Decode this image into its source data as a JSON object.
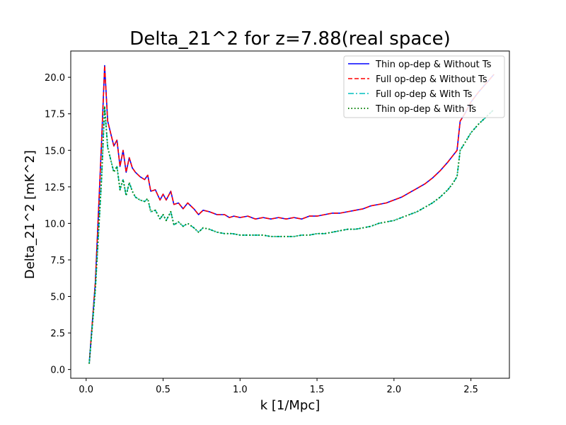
{
  "chart_data": {
    "type": "line",
    "title": "Delta_21^2 for z=7.88(real space)",
    "xlabel": "k [1/Mpc]",
    "ylabel": "Delta_21^2 [mK^2]",
    "xlim": [
      -0.1,
      2.75
    ],
    "ylim": [
      -0.6,
      21.8
    ],
    "xticks": [
      0.0,
      0.5,
      1.0,
      1.5,
      2.0,
      2.5
    ],
    "xtick_labels": [
      "0.0",
      "0.5",
      "1.0",
      "1.5",
      "2.0",
      "2.5"
    ],
    "yticks": [
      0.0,
      2.5,
      5.0,
      7.5,
      10.0,
      12.5,
      15.0,
      17.5,
      20.0
    ],
    "ytick_labels": [
      "0.0",
      "2.5",
      "5.0",
      "7.5",
      "10.0",
      "12.5",
      "15.0",
      "17.5",
      "20.0"
    ],
    "grid": false,
    "legend_position": "top-right",
    "series": [
      {
        "name": "Thin op-dep & Without Ts",
        "color": "#0000ff",
        "linestyle": "solid",
        "x": [
          0.02,
          0.06,
          0.1,
          0.12,
          0.14,
          0.18,
          0.2,
          0.22,
          0.24,
          0.26,
          0.28,
          0.3,
          0.32,
          0.35,
          0.38,
          0.4,
          0.42,
          0.45,
          0.48,
          0.5,
          0.52,
          0.55,
          0.57,
          0.6,
          0.63,
          0.66,
          0.7,
          0.73,
          0.76,
          0.8,
          0.85,
          0.9,
          0.93,
          0.96,
          1.0,
          1.05,
          1.1,
          1.15,
          1.2,
          1.25,
          1.3,
          1.35,
          1.4,
          1.45,
          1.5,
          1.55,
          1.6,
          1.65,
          1.7,
          1.75,
          1.8,
          1.85,
          1.9,
          1.95,
          2.0,
          2.05,
          2.1,
          2.15,
          2.2,
          2.25,
          2.3,
          2.35,
          2.38,
          2.41,
          2.43,
          2.46,
          2.5,
          2.55,
          2.6,
          2.65
        ],
        "values": [
          0.4,
          6.0,
          15.5,
          20.8,
          17.0,
          15.3,
          15.7,
          13.9,
          15.0,
          13.5,
          14.5,
          13.8,
          13.5,
          13.2,
          13.0,
          13.3,
          12.2,
          12.3,
          11.6,
          12.0,
          11.6,
          12.2,
          11.3,
          11.4,
          11.0,
          11.4,
          11.0,
          10.6,
          10.9,
          10.8,
          10.6,
          10.6,
          10.4,
          10.5,
          10.4,
          10.5,
          10.3,
          10.4,
          10.3,
          10.4,
          10.3,
          10.4,
          10.3,
          10.5,
          10.5,
          10.6,
          10.7,
          10.7,
          10.8,
          10.9,
          11.0,
          11.2,
          11.3,
          11.4,
          11.6,
          11.8,
          12.1,
          12.4,
          12.7,
          13.1,
          13.6,
          14.2,
          14.6,
          15.0,
          17.0,
          17.5,
          18.3,
          19.0,
          19.6,
          20.2
        ]
      },
      {
        "name": "Full op-dep & Without Ts",
        "color": "#ff0000",
        "linestyle": "dashed",
        "x": [
          0.02,
          0.06,
          0.1,
          0.12,
          0.14,
          0.18,
          0.2,
          0.22,
          0.24,
          0.26,
          0.28,
          0.3,
          0.32,
          0.35,
          0.38,
          0.4,
          0.42,
          0.45,
          0.48,
          0.5,
          0.52,
          0.55,
          0.57,
          0.6,
          0.63,
          0.66,
          0.7,
          0.73,
          0.76,
          0.8,
          0.85,
          0.9,
          0.93,
          0.96,
          1.0,
          1.05,
          1.1,
          1.15,
          1.2,
          1.25,
          1.3,
          1.35,
          1.4,
          1.45,
          1.5,
          1.55,
          1.6,
          1.65,
          1.7,
          1.75,
          1.8,
          1.85,
          1.9,
          1.95,
          2.0,
          2.05,
          2.1,
          2.15,
          2.2,
          2.25,
          2.3,
          2.35,
          2.38,
          2.41,
          2.43,
          2.46,
          2.5,
          2.55,
          2.6,
          2.65
        ],
        "values": [
          0.4,
          6.0,
          15.5,
          20.8,
          17.0,
          15.3,
          15.7,
          13.9,
          15.0,
          13.5,
          14.5,
          13.8,
          13.5,
          13.2,
          13.0,
          13.3,
          12.2,
          12.3,
          11.6,
          12.0,
          11.6,
          12.2,
          11.3,
          11.4,
          11.0,
          11.4,
          11.0,
          10.6,
          10.9,
          10.8,
          10.6,
          10.6,
          10.4,
          10.5,
          10.4,
          10.5,
          10.3,
          10.4,
          10.3,
          10.4,
          10.3,
          10.4,
          10.3,
          10.5,
          10.5,
          10.6,
          10.7,
          10.7,
          10.8,
          10.9,
          11.0,
          11.2,
          11.3,
          11.4,
          11.6,
          11.8,
          12.1,
          12.4,
          12.7,
          13.1,
          13.6,
          14.2,
          14.6,
          15.0,
          17.0,
          17.5,
          18.3,
          19.0,
          19.6,
          20.2
        ]
      },
      {
        "name": "Full op-dep & With Ts",
        "color": "#00bfbf",
        "linestyle": "dashdot",
        "x": [
          0.02,
          0.06,
          0.1,
          0.12,
          0.14,
          0.18,
          0.2,
          0.22,
          0.24,
          0.26,
          0.28,
          0.3,
          0.32,
          0.35,
          0.38,
          0.4,
          0.42,
          0.45,
          0.48,
          0.5,
          0.52,
          0.55,
          0.57,
          0.6,
          0.63,
          0.66,
          0.7,
          0.73,
          0.76,
          0.8,
          0.85,
          0.9,
          0.95,
          1.0,
          1.05,
          1.1,
          1.15,
          1.2,
          1.25,
          1.3,
          1.35,
          1.4,
          1.45,
          1.5,
          1.55,
          1.6,
          1.65,
          1.7,
          1.75,
          1.8,
          1.85,
          1.9,
          1.95,
          2.0,
          2.05,
          2.1,
          2.15,
          2.2,
          2.25,
          2.3,
          2.35,
          2.38,
          2.41,
          2.43,
          2.46,
          2.5,
          2.55,
          2.6,
          2.65
        ],
        "values": [
          0.4,
          5.5,
          13.0,
          18.0,
          15.2,
          13.5,
          13.9,
          12.3,
          13.0,
          11.9,
          12.8,
          12.2,
          11.8,
          11.6,
          11.5,
          11.7,
          10.8,
          10.9,
          10.3,
          10.6,
          10.2,
          10.8,
          9.9,
          10.1,
          9.8,
          10.0,
          9.7,
          9.4,
          9.7,
          9.6,
          9.4,
          9.3,
          9.3,
          9.2,
          9.2,
          9.2,
          9.2,
          9.1,
          9.1,
          9.1,
          9.1,
          9.2,
          9.2,
          9.3,
          9.3,
          9.4,
          9.5,
          9.6,
          9.6,
          9.7,
          9.8,
          10.0,
          10.1,
          10.2,
          10.4,
          10.6,
          10.8,
          11.1,
          11.4,
          11.8,
          12.3,
          12.7,
          13.2,
          15.0,
          15.5,
          16.2,
          16.8,
          17.3,
          17.8
        ]
      },
      {
        "name": "Thin op-dep & With Ts",
        "color": "#008000",
        "linestyle": "dotted",
        "x": [
          0.02,
          0.06,
          0.1,
          0.12,
          0.14,
          0.18,
          0.2,
          0.22,
          0.24,
          0.26,
          0.28,
          0.3,
          0.32,
          0.35,
          0.38,
          0.4,
          0.42,
          0.45,
          0.48,
          0.5,
          0.52,
          0.55,
          0.57,
          0.6,
          0.63,
          0.66,
          0.7,
          0.73,
          0.76,
          0.8,
          0.85,
          0.9,
          0.95,
          1.0,
          1.05,
          1.1,
          1.15,
          1.2,
          1.25,
          1.3,
          1.35,
          1.4,
          1.45,
          1.5,
          1.55,
          1.6,
          1.65,
          1.7,
          1.75,
          1.8,
          1.85,
          1.9,
          1.95,
          2.0,
          2.05,
          2.1,
          2.15,
          2.2,
          2.25,
          2.3,
          2.35,
          2.38,
          2.41,
          2.43,
          2.46,
          2.5,
          2.55,
          2.6,
          2.65
        ],
        "values": [
          0.4,
          5.5,
          13.0,
          18.0,
          15.2,
          13.5,
          13.9,
          12.3,
          13.0,
          11.9,
          12.8,
          12.2,
          11.8,
          11.6,
          11.5,
          11.7,
          10.8,
          10.9,
          10.3,
          10.6,
          10.2,
          10.8,
          9.9,
          10.1,
          9.8,
          10.0,
          9.7,
          9.4,
          9.7,
          9.6,
          9.4,
          9.3,
          9.3,
          9.2,
          9.2,
          9.2,
          9.2,
          9.1,
          9.1,
          9.1,
          9.1,
          9.2,
          9.2,
          9.3,
          9.3,
          9.4,
          9.5,
          9.6,
          9.6,
          9.7,
          9.8,
          10.0,
          10.1,
          10.2,
          10.4,
          10.6,
          10.8,
          11.1,
          11.4,
          11.8,
          12.3,
          12.7,
          13.2,
          15.0,
          15.5,
          16.2,
          16.8,
          17.3,
          17.8
        ]
      }
    ]
  }
}
